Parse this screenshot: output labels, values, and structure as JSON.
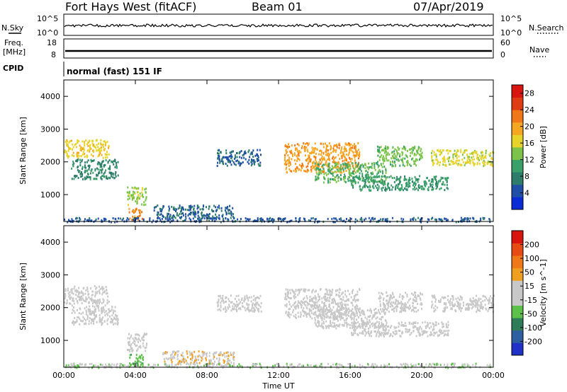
{
  "header": {
    "station": "Fort Hays West (fitACF)",
    "beam": "Beam 01",
    "date": "07/Apr/2019"
  },
  "status_panels": {
    "nsky_label": "N.Sky",
    "nsearch_label": "N.Search",
    "freq_label_line1": "Freq.",
    "freq_label_line2": "[MHz]",
    "nave_label": "Nave",
    "cpid_label": "CPID",
    "cpid_value": "normal (fast) 151 IF",
    "noise_ticks_left": [
      "10^5",
      "10^0"
    ],
    "noise_ticks_right": [
      "10^5",
      "10^0"
    ],
    "freq_ticks": [
      "18",
      "8"
    ],
    "nave_ticks": [
      "60",
      "0"
    ]
  },
  "colors": {
    "power_scale": [
      "#0a2bd6",
      "#1f4fa6",
      "#2e7d6a",
      "#3aa06a",
      "#7cc34a",
      "#e6d42a",
      "#f5a623",
      "#f07818",
      "#e03c14",
      "#d9150f"
    ],
    "velocity_scale": [
      "#2032c8",
      "#2e5fa0",
      "#2e7d58",
      "#5cc04a",
      "#c8c8c8",
      "#c8c8c8",
      "#f0a020",
      "#f07818",
      "#e84a14",
      "#d9150f"
    ]
  },
  "chart_data": [
    {
      "type": "heatmap",
      "name": "power",
      "title": "",
      "ylabel": "Slant Range [km]",
      "xlabel": "",
      "ylim": [
        180,
        4500
      ],
      "xlim": [
        0,
        24
      ],
      "yticks": [
        "1000",
        "2000",
        "3000",
        "4000"
      ],
      "xticks": [
        "00:00",
        "04:00",
        "08:00",
        "12:00",
        "16:00",
        "20:00",
        "00:00"
      ],
      "colorbar_label": "Power [dB]",
      "colorbar_ticks": [
        "4",
        "8",
        "12",
        "16",
        "20",
        "24",
        "28"
      ],
      "colorbar_range": [
        0,
        30
      ],
      "regions": [
        {
          "t0": 0.0,
          "t1": 2.5,
          "r0": 2150,
          "r1": 2700,
          "value": 17
        },
        {
          "t0": 0.4,
          "t1": 3.0,
          "r0": 1500,
          "r1": 2100,
          "value": 8
        },
        {
          "t0": 3.5,
          "t1": 4.6,
          "r0": 700,
          "r1": 1250,
          "value": 14
        },
        {
          "t0": 3.6,
          "t1": 4.4,
          "r0": 250,
          "r1": 600,
          "value": 22
        },
        {
          "t0": 5.0,
          "t1": 9.5,
          "r0": 300,
          "r1": 700,
          "value": 6
        },
        {
          "t0": 0.0,
          "t1": 24.0,
          "r0": 190,
          "r1": 320,
          "value": 5
        },
        {
          "t0": 8.5,
          "t1": 11.0,
          "r0": 1900,
          "r1": 2400,
          "value": 6
        },
        {
          "t0": 12.3,
          "t1": 16.5,
          "r0": 1700,
          "r1": 2600,
          "value": 20
        },
        {
          "t0": 14.0,
          "t1": 18.0,
          "r0": 1400,
          "r1": 2000,
          "value": 12
        },
        {
          "t0": 16.0,
          "t1": 21.5,
          "r0": 1150,
          "r1": 1600,
          "value": 10
        },
        {
          "t0": 17.5,
          "t1": 20.0,
          "r0": 1900,
          "r1": 2500,
          "value": 13
        },
        {
          "t0": 20.5,
          "t1": 24.0,
          "r0": 1900,
          "r1": 2400,
          "value": 16
        }
      ]
    },
    {
      "type": "heatmap",
      "name": "velocity",
      "title": "",
      "ylabel": "Slant Range [km]",
      "xlabel": "Time UT",
      "ylim": [
        180,
        4500
      ],
      "xlim": [
        0,
        24
      ],
      "yticks": [
        "1000",
        "2000",
        "3000",
        "4000"
      ],
      "xticks": [
        "00:00",
        "04:00",
        "08:00",
        "12:00",
        "16:00",
        "20:00",
        "00:00"
      ],
      "colorbar_label": "Velocity [m s^-1]",
      "colorbar_ticks": [
        "200",
        "100",
        "50",
        "15",
        "-15",
        "-50",
        "-100",
        "-200"
      ],
      "colorbar_range": [
        -250,
        250
      ],
      "regions": [
        {
          "t0": 0.0,
          "t1": 2.5,
          "r0": 2150,
          "r1": 2700,
          "value": 0
        },
        {
          "t0": 0.4,
          "t1": 3.0,
          "r0": 1500,
          "r1": 2100,
          "value": 0
        },
        {
          "t0": 3.5,
          "t1": 4.6,
          "r0": 700,
          "r1": 1250,
          "value": 0
        },
        {
          "t0": 3.6,
          "t1": 4.4,
          "r0": 250,
          "r1": 600,
          "value": -80
        },
        {
          "t0": 5.5,
          "t1": 9.5,
          "r0": 300,
          "r1": 700,
          "value": 40
        },
        {
          "t0": 0.0,
          "t1": 24.0,
          "r0": 190,
          "r1": 320,
          "value": -40
        },
        {
          "t0": 8.5,
          "t1": 11.0,
          "r0": 1900,
          "r1": 2400,
          "value": 0
        },
        {
          "t0": 12.3,
          "t1": 16.5,
          "r0": 1700,
          "r1": 2600,
          "value": 0
        },
        {
          "t0": 14.0,
          "t1": 18.0,
          "r0": 1400,
          "r1": 2000,
          "value": 0
        },
        {
          "t0": 16.0,
          "t1": 21.5,
          "r0": 1150,
          "r1": 1600,
          "value": 0
        },
        {
          "t0": 17.5,
          "t1": 20.0,
          "r0": 1900,
          "r1": 2500,
          "value": 0
        },
        {
          "t0": 20.5,
          "t1": 24.0,
          "r0": 1900,
          "r1": 2400,
          "value": 0
        }
      ]
    }
  ]
}
